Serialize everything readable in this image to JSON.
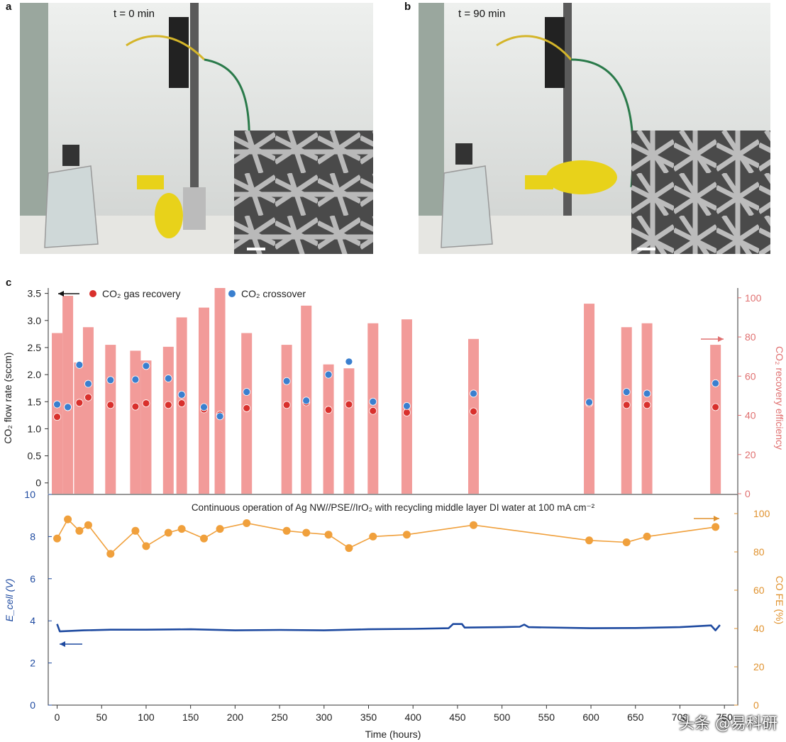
{
  "panels": {
    "a": {
      "letter": "a",
      "time_label": "t = 0 min"
    },
    "b": {
      "letter": "b",
      "time_label": "t = 90 min"
    },
    "c": {
      "letter": "c"
    }
  },
  "watermark": "头条 @易科研",
  "colors": {
    "bar_fill": "#f29b99",
    "gas_recovery_marker": "#d9302c",
    "crossover_marker": "#3a7fcf",
    "fe_line": "#f0a03c",
    "ecell_line": "#1e4aa0",
    "right_axis_top": "#e07070",
    "right_axis_bottom": "#e0922e"
  },
  "chart_data": [
    {
      "type": "bar",
      "subplot": "top",
      "legend_position": "top-left",
      "ylabel_left": "CO₂ flow rate (sccm)",
      "ylabel_right": "CO₂ recovery efficiency",
      "ylim_left": [
        -0.2,
        3.6
      ],
      "yticks_left": [
        "0",
        "0.5",
        "1.0",
        "1.5",
        "2.0",
        "2.5",
        "3.0",
        "3.5"
      ],
      "ylim_right": [
        0,
        105
      ],
      "yticks_right": [
        "0",
        "20",
        "40",
        "60",
        "80",
        "100"
      ],
      "xlim": [
        -10,
        765
      ],
      "bars_recovery_efficiency": [
        {
          "x": 0,
          "value": 82
        },
        {
          "x": 12,
          "value": 101
        },
        {
          "x": 25,
          "value": 67
        },
        {
          "x": 35,
          "value": 85
        },
        {
          "x": 60,
          "value": 76
        },
        {
          "x": 88,
          "value": 73
        },
        {
          "x": 100,
          "value": 68
        },
        {
          "x": 125,
          "value": 75
        },
        {
          "x": 140,
          "value": 90
        },
        {
          "x": 165,
          "value": 95
        },
        {
          "x": 183,
          "value": 105
        },
        {
          "x": 213,
          "value": 82
        },
        {
          "x": 258,
          "value": 76
        },
        {
          "x": 280,
          "value": 96
        },
        {
          "x": 305,
          "value": 66
        },
        {
          "x": 328,
          "value": 64
        },
        {
          "x": 355,
          "value": 87
        },
        {
          "x": 393,
          "value": 89
        },
        {
          "x": 468,
          "value": 79
        },
        {
          "x": 598,
          "value": 97
        },
        {
          "x": 640,
          "value": 85
        },
        {
          "x": 663,
          "value": 87
        },
        {
          "x": 740,
          "value": 76
        }
      ],
      "series": [
        {
          "name": "CO₂ gas recovery",
          "points": [
            {
              "x": 0,
              "y": 1.22
            },
            {
              "x": 12,
              "y": 1.4
            },
            {
              "x": 25,
              "y": 1.48
            },
            {
              "x": 35,
              "y": 1.58
            },
            {
              "x": 60,
              "y": 1.44
            },
            {
              "x": 88,
              "y": 1.41
            },
            {
              "x": 100,
              "y": 1.47
            },
            {
              "x": 125,
              "y": 1.44
            },
            {
              "x": 140,
              "y": 1.47
            },
            {
              "x": 165,
              "y": 1.36
            },
            {
              "x": 183,
              "y": 1.26
            },
            {
              "x": 213,
              "y": 1.38
            },
            {
              "x": 258,
              "y": 1.44
            },
            {
              "x": 280,
              "y": 1.49
            },
            {
              "x": 305,
              "y": 1.35
            },
            {
              "x": 328,
              "y": 1.45
            },
            {
              "x": 355,
              "y": 1.33
            },
            {
              "x": 393,
              "y": 1.3
            },
            {
              "x": 468,
              "y": 1.32
            },
            {
              "x": 598,
              "y": 1.47
            },
            {
              "x": 640,
              "y": 1.44
            },
            {
              "x": 663,
              "y": 1.44
            },
            {
              "x": 740,
              "y": 1.4
            }
          ]
        },
        {
          "name": "CO₂ crossover",
          "points": [
            {
              "x": 0,
              "y": 1.45
            },
            {
              "x": 12,
              "y": 1.4
            },
            {
              "x": 25,
              "y": 2.18
            },
            {
              "x": 35,
              "y": 1.83
            },
            {
              "x": 60,
              "y": 1.9
            },
            {
              "x": 88,
              "y": 1.91
            },
            {
              "x": 100,
              "y": 2.16
            },
            {
              "x": 125,
              "y": 1.93
            },
            {
              "x": 140,
              "y": 1.63
            },
            {
              "x": 165,
              "y": 1.4
            },
            {
              "x": 183,
              "y": 1.23
            },
            {
              "x": 213,
              "y": 1.68
            },
            {
              "x": 258,
              "y": 1.88
            },
            {
              "x": 280,
              "y": 1.52
            },
            {
              "x": 305,
              "y": 2.0
            },
            {
              "x": 328,
              "y": 2.24
            },
            {
              "x": 355,
              "y": 1.5
            },
            {
              "x": 393,
              "y": 1.42
            },
            {
              "x": 468,
              "y": 1.65
            },
            {
              "x": 598,
              "y": 1.49
            },
            {
              "x": 640,
              "y": 1.68
            },
            {
              "x": 663,
              "y": 1.65
            },
            {
              "x": 740,
              "y": 1.84
            }
          ]
        }
      ]
    },
    {
      "type": "line",
      "subplot": "bottom",
      "annotation": "Continuous operation of Ag NW//PSE//IrO₂ with recycling middle layer DI water at 100 mA cm⁻²",
      "xlabel": "Time (hours)",
      "xticks": [
        "0",
        "50",
        "100",
        "150",
        "200",
        "250",
        "300",
        "350",
        "400",
        "450",
        "500",
        "550",
        "600",
        "650",
        "700",
        "750"
      ],
      "xlim": [
        -10,
        765
      ],
      "ylabel_left": "E_cell (V)",
      "ylim_left": [
        0,
        10
      ],
      "yticks_left": [
        "0",
        "2",
        "4",
        "6",
        "8",
        "10"
      ],
      "ylabel_right": "CO FE (%)",
      "ylim_right": [
        0,
        110
      ],
      "yticks_right": [
        "0",
        "20",
        "40",
        "60",
        "80",
        "100"
      ],
      "series": [
        {
          "name": "CO FE",
          "axis": "right",
          "points": [
            {
              "x": 0,
              "y": 87
            },
            {
              "x": 12,
              "y": 97
            },
            {
              "x": 25,
              "y": 91
            },
            {
              "x": 35,
              "y": 94
            },
            {
              "x": 60,
              "y": 79
            },
            {
              "x": 88,
              "y": 91
            },
            {
              "x": 100,
              "y": 83
            },
            {
              "x": 125,
              "y": 90
            },
            {
              "x": 140,
              "y": 92
            },
            {
              "x": 165,
              "y": 87
            },
            {
              "x": 183,
              "y": 92
            },
            {
              "x": 213,
              "y": 95
            },
            {
              "x": 258,
              "y": 91
            },
            {
              "x": 280,
              "y": 90
            },
            {
              "x": 305,
              "y": 89
            },
            {
              "x": 328,
              "y": 82
            },
            {
              "x": 355,
              "y": 88
            },
            {
              "x": 393,
              "y": 89
            },
            {
              "x": 468,
              "y": 94
            },
            {
              "x": 598,
              "y": 86
            },
            {
              "x": 640,
              "y": 85
            },
            {
              "x": 663,
              "y": 88
            },
            {
              "x": 740,
              "y": 93
            }
          ]
        },
        {
          "name": "E_cell",
          "axis": "left",
          "points": [
            {
              "x": 0,
              "y": 3.85
            },
            {
              "x": 3,
              "y": 3.5
            },
            {
              "x": 30,
              "y": 3.55
            },
            {
              "x": 60,
              "y": 3.58
            },
            {
              "x": 100,
              "y": 3.58
            },
            {
              "x": 150,
              "y": 3.6
            },
            {
              "x": 200,
              "y": 3.55
            },
            {
              "x": 250,
              "y": 3.57
            },
            {
              "x": 300,
              "y": 3.55
            },
            {
              "x": 350,
              "y": 3.6
            },
            {
              "x": 400,
              "y": 3.62
            },
            {
              "x": 440,
              "y": 3.65
            },
            {
              "x": 445,
              "y": 3.85
            },
            {
              "x": 455,
              "y": 3.85
            },
            {
              "x": 458,
              "y": 3.68
            },
            {
              "x": 500,
              "y": 3.7
            },
            {
              "x": 520,
              "y": 3.72
            },
            {
              "x": 525,
              "y": 3.82
            },
            {
              "x": 530,
              "y": 3.7
            },
            {
              "x": 600,
              "y": 3.65
            },
            {
              "x": 650,
              "y": 3.66
            },
            {
              "x": 700,
              "y": 3.7
            },
            {
              "x": 735,
              "y": 3.78
            },
            {
              "x": 740,
              "y": 3.55
            },
            {
              "x": 745,
              "y": 3.8
            }
          ]
        }
      ]
    }
  ]
}
